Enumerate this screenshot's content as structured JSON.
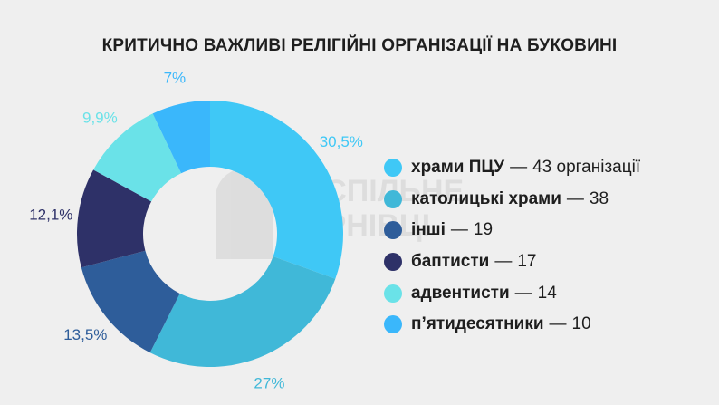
{
  "title": "КРИТИЧНО ВАЖЛИВІ РЕЛІГІЙНІ ОРГАНІЗАЦІЇ НА БУКОВИНІ",
  "watermark": {
    "line1": "СУСПІЛЬНЕ",
    "line2": "ЧЕРНІВЦІ"
  },
  "legend_separator": "—",
  "chart_data": {
    "type": "pie",
    "donut": true,
    "title": "КРИТИЧНО ВАЖЛИВІ РЕЛІГІЙНІ ОРГАНІЗАЦІЇ НА БУКОВИНІ",
    "legend_position": "right",
    "slices": [
      {
        "label": "храми ПЦУ",
        "value_text": "43 організації",
        "value": 43,
        "percent_label": "30,5%",
        "color": "#3fc8f6"
      },
      {
        "label": "католицькі храми",
        "value_text": "38",
        "value": 38,
        "percent_label": "27%",
        "color": "#40b8d8"
      },
      {
        "label": "інші",
        "value_text": "19",
        "value": 19,
        "percent_label": "13,5%",
        "color": "#2e5d9a"
      },
      {
        "label": "баптисти",
        "value_text": "17",
        "value": 17,
        "percent_label": "12,1%",
        "color": "#2e3168"
      },
      {
        "label": "адвентисти",
        "value_text": "14",
        "value": 14,
        "percent_label": "9,9%",
        "color": "#6ae2e8"
      },
      {
        "label": "п’ятидесятники",
        "value_text": "10",
        "value": 10,
        "percent_label": "7%",
        "color": "#3ab7fb"
      }
    ]
  }
}
